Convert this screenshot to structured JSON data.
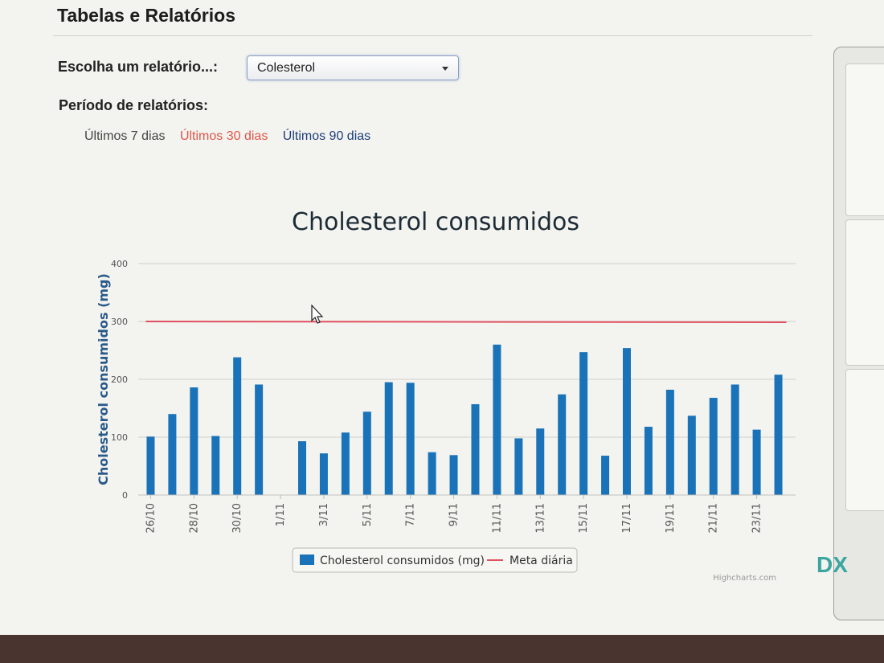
{
  "page": {
    "heading": "Tabelas e Relatórios",
    "report_label": "Escolha um relatório...:",
    "report_select_value": "Colesterol",
    "period_label": "Período de relatórios:",
    "period_links": [
      {
        "label": "Últimos 7 dias",
        "state": "normal"
      },
      {
        "label": "Últimos 30 dias",
        "state": "active"
      },
      {
        "label": "Últimos 90 dias",
        "state": "normal"
      }
    ]
  },
  "credits": "Highcharts.com",
  "right_panel": {
    "logo_text": "DX"
  },
  "chart_data": {
    "type": "bar",
    "title": "Cholesterol consumidos",
    "ylabel": "Cholesterol consumidos (mg)",
    "xlabel": "",
    "ylim": [
      0,
      400
    ],
    "yticks": [
      0,
      100,
      200,
      300,
      400
    ],
    "grid": true,
    "legend_position": "bottom-center",
    "categories": [
      "26/10",
      "27/10",
      "28/10",
      "29/10",
      "30/10",
      "31/10",
      "1/11",
      "2/11",
      "3/11",
      "4/11",
      "5/11",
      "6/11",
      "7/11",
      "8/11",
      "9/11",
      "10/11",
      "11/11",
      "12/11",
      "13/11",
      "14/11",
      "15/11",
      "16/11",
      "17/11",
      "18/11",
      "19/11",
      "20/11",
      "21/11",
      "22/11",
      "23/11",
      "24/11"
    ],
    "tick_labels": [
      "26/10",
      "28/10",
      "30/10",
      "1/11",
      "3/11",
      "5/11",
      "7/11",
      "9/11",
      "11/11",
      "13/11",
      "15/11",
      "17/11",
      "19/11",
      "21/11",
      "23/11"
    ],
    "series": [
      {
        "name": "Cholesterol consumidos (mg)",
        "type": "bar",
        "color": "#1a73b8",
        "values": [
          101,
          140,
          186,
          102,
          238,
          191,
          0,
          93,
          72,
          108,
          144,
          195,
          194,
          74,
          69,
          157,
          260,
          98,
          115,
          174,
          247,
          68,
          254,
          118,
          182,
          137,
          168,
          191,
          113,
          208
        ]
      },
      {
        "name": "Meta diária",
        "type": "line",
        "color": "#e0505f",
        "value": 300
      }
    ]
  }
}
